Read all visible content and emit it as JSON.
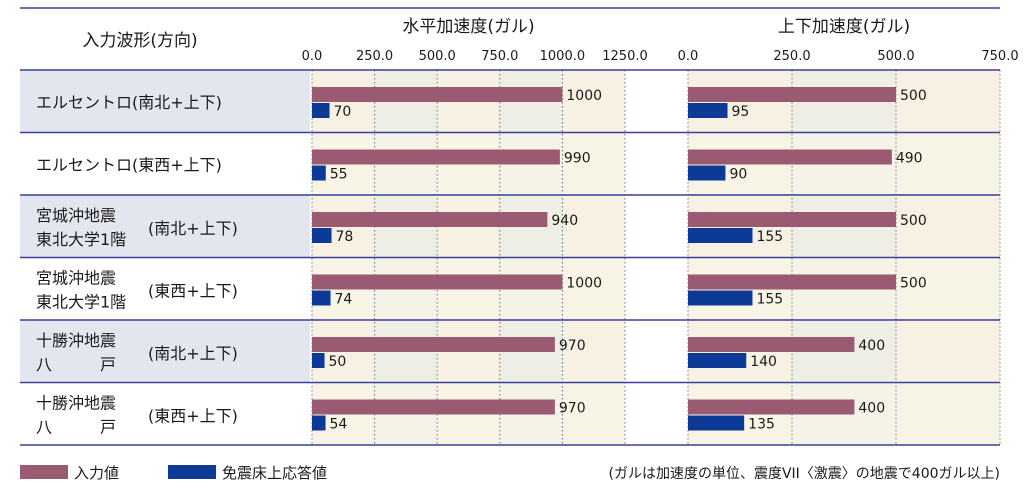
{
  "chart_data": {
    "type": "bar",
    "orientation": "horizontal",
    "row_header": "入力波形(方向)",
    "rows": [
      {
        "line1": "エルセントロ(南北+上下)",
        "line2": "",
        "suffix": "",
        "shade": true
      },
      {
        "line1": "エルセントロ(東西+上下)",
        "line2": "",
        "suffix": "",
        "shade": false
      },
      {
        "line1": "宮城沖地震",
        "line2": "東北大学1階",
        "suffix": "(南北+上下)",
        "shade": true
      },
      {
        "line1": "宮城沖地震",
        "line2": "東北大学1階",
        "suffix": "(東西+上下)",
        "shade": false
      },
      {
        "line1": "十勝沖地震",
        "line2": "八　　　戸",
        "suffix": "(南北+上下)",
        "shade": true
      },
      {
        "line1": "十勝沖地震",
        "line2": "八　　　戸",
        "suffix": "(東西+上下)",
        "shade": false
      }
    ],
    "panels": [
      {
        "title": "水平加速度(ガル)",
        "xlim": [
          0,
          1250
        ],
        "ticks": [
          "0.0",
          "250.0",
          "500.0",
          "750.0",
          "1000.0",
          "1250.0"
        ],
        "series": [
          {
            "name": "入力値",
            "values": [
              1000,
              990,
              940,
              1000,
              970,
              970
            ]
          },
          {
            "name": "免震床上応答値",
            "values": [
              70,
              55,
              78,
              74,
              50,
              54
            ]
          }
        ]
      },
      {
        "title": "上下加速度(ガル)",
        "xlim": [
          0,
          750
        ],
        "ticks": [
          "0.0",
          "250.0",
          "500.0",
          "750.0"
        ],
        "series": [
          {
            "name": "入力値",
            "values": [
              500,
              490,
              500,
              500,
              400,
              400
            ]
          },
          {
            "name": "免震床上応答値",
            "values": [
              95,
              90,
              155,
              155,
              140,
              135
            ]
          }
        ]
      }
    ],
    "legend": [
      {
        "name": "入力値",
        "color": "#9a5a72"
      },
      {
        "name": "免震床上応答値",
        "color": "#0d3a96"
      }
    ],
    "note": "(ガルは加速度の単位、震度VII〈激震〉の地震で400ガル以上)",
    "colors": {
      "input": "#9a5a72",
      "response": "#0d3a96",
      "rule": "#3b3f95",
      "label_shade": "#e3e6ee",
      "plot_a": "#f7f1e3",
      "plot_b": "#eeeee4",
      "plot_alt": "#fbf8ea"
    }
  }
}
